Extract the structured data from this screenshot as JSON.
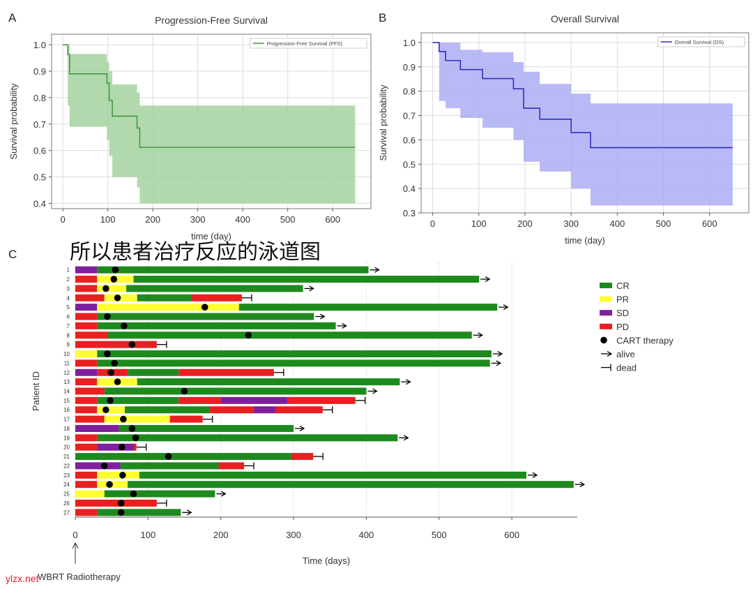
{
  "panel_labels": {
    "a": "A",
    "b": "B",
    "c": "C"
  },
  "overlay_title": "所以患者治疗反应的泳道图",
  "watermark": "ylzx.net",
  "chart_data": [
    {
      "type": "line",
      "panel": "A",
      "title": "Progression-Free Survival",
      "xlabel": "time (day)",
      "ylabel": "Survival probability",
      "legend": "Progression-Free Survival (PFS)",
      "legend_position": "top-right",
      "color": "#3f9a3f",
      "ci_color": "#9fcf9a",
      "grid": true,
      "xlim": [
        -25,
        685
      ],
      "ylim": [
        0.38,
        1.04
      ],
      "xticks": [
        0,
        100,
        200,
        300,
        400,
        500,
        600
      ],
      "yticks": [
        0.4,
        0.5,
        0.6,
        0.7,
        0.8,
        0.9,
        1.0
      ],
      "step_x": [
        0,
        11,
        15,
        98,
        103,
        110,
        165,
        171,
        650
      ],
      "step_y": [
        1.0,
        0.963,
        0.89,
        0.855,
        0.79,
        0.73,
        0.685,
        0.612,
        0.612
      ],
      "ci_lower": [
        1.0,
        0.77,
        0.69,
        0.64,
        0.58,
        0.5,
        0.46,
        0.4,
        0.4
      ],
      "ci_upper": [
        1.0,
        1.0,
        0.965,
        0.935,
        0.9,
        0.85,
        0.82,
        0.77,
        0.77
      ]
    },
    {
      "type": "line",
      "panel": "B",
      "title": "Overall Survival",
      "xlabel": "time (day)",
      "ylabel": "Survival probability",
      "legend": "Overall Survival (OS)",
      "legend_position": "top-right",
      "color": "#3030c0",
      "ci_color": "#a8a8f4",
      "grid": true,
      "xlim": [
        -25,
        685
      ],
      "ylim": [
        0.3,
        1.04
      ],
      "xticks": [
        0,
        100,
        200,
        300,
        400,
        500,
        600
      ],
      "yticks": [
        0.3,
        0.4,
        0.5,
        0.6,
        0.7,
        0.8,
        0.9,
        1.0
      ],
      "step_x": [
        0,
        14,
        28,
        60,
        108,
        175,
        197,
        232,
        300,
        342,
        650
      ],
      "step_y": [
        1.0,
        0.963,
        0.926,
        0.889,
        0.852,
        0.81,
        0.73,
        0.685,
        0.63,
        0.568,
        0.568
      ],
      "ci_lower": [
        1.0,
        0.76,
        0.73,
        0.69,
        0.65,
        0.6,
        0.51,
        0.47,
        0.4,
        0.33,
        0.33
      ],
      "ci_upper": [
        1.0,
        1.0,
        1.0,
        0.97,
        0.96,
        0.92,
        0.88,
        0.83,
        0.79,
        0.75,
        0.75
      ]
    },
    {
      "type": "bar",
      "panel": "C",
      "subtype": "swimmer",
      "xlabel": "Time (days)",
      "ylabel": "Patient ID",
      "xlim": [
        0,
        690
      ],
      "xticks": [
        0,
        100,
        200,
        300,
        400,
        500,
        600
      ],
      "annotation": "WBRT Radiotherapy",
      "legend_position": "right",
      "legend": [
        {
          "key": "CR",
          "label": "CR",
          "kind": "box",
          "color": "#1e8a1e"
        },
        {
          "key": "PR",
          "label": "PR",
          "kind": "box",
          "color": "#ffff33"
        },
        {
          "key": "SD",
          "label": "SD",
          "kind": "box",
          "color": "#7f1f9e"
        },
        {
          "key": "PD",
          "label": "PD",
          "kind": "box",
          "color": "#e82020"
        },
        {
          "key": "cart",
          "label": "CART therapy",
          "kind": "dot",
          "color": "#000000"
        },
        {
          "key": "alive",
          "label": "alive",
          "kind": "arrow",
          "color": "#000000"
        },
        {
          "key": "dead",
          "label": "dead",
          "kind": "tbar",
          "color": "#000000"
        }
      ],
      "patients": [
        {
          "id": "1",
          "segments": [
            [
              "SD",
              0,
              30
            ],
            [
              "CR",
              30,
              403
            ]
          ],
          "cart": 55,
          "status": "alive"
        },
        {
          "id": "2",
          "segments": [
            [
              "PD",
              0,
              30
            ],
            [
              "PR",
              30,
              80
            ],
            [
              "CR",
              80,
              555
            ]
          ],
          "cart": 53,
          "status": "alive"
        },
        {
          "id": "3",
          "segments": [
            [
              "PD",
              0,
              30
            ],
            [
              "PR",
              30,
              70
            ],
            [
              "CR",
              70,
              313
            ]
          ],
          "cart": 42,
          "status": "alive"
        },
        {
          "id": "4",
          "segments": [
            [
              "PD",
              0,
              40
            ],
            [
              "PR",
              40,
              85
            ],
            [
              "CR",
              85,
              160
            ],
            [
              "PD",
              160,
              229
            ]
          ],
          "cart": 58,
          "status": "dead"
        },
        {
          "id": "5",
          "segments": [
            [
              "SD",
              0,
              30
            ],
            [
              "PR",
              30,
              225
            ],
            [
              "CR",
              225,
              580
            ]
          ],
          "cart": 178,
          "status": "alive"
        },
        {
          "id": "6",
          "segments": [
            [
              "PD",
              0,
              30
            ],
            [
              "CR",
              30,
              328
            ]
          ],
          "cart": 44,
          "status": "alive"
        },
        {
          "id": "7",
          "segments": [
            [
              "PD",
              0,
              30
            ],
            [
              "CR",
              30,
              358
            ]
          ],
          "cart": 67,
          "status": "alive"
        },
        {
          "id": "8",
          "segments": [
            [
              "PD",
              0,
              45
            ],
            [
              "CR",
              45,
              545
            ]
          ],
          "cart": 238,
          "status": "alive"
        },
        {
          "id": "9",
          "segments": [
            [
              "PD",
              0,
              112
            ]
          ],
          "cart": 78,
          "status": "dead"
        },
        {
          "id": "10",
          "segments": [
            [
              "PR",
              0,
              30
            ],
            [
              "CR",
              30,
              572
            ]
          ],
          "cart": 44,
          "status": "alive"
        },
        {
          "id": "11",
          "segments": [
            [
              "PD",
              0,
              30
            ],
            [
              "CR",
              30,
              570
            ]
          ],
          "cart": 54,
          "status": "alive"
        },
        {
          "id": "12",
          "segments": [
            [
              "SD",
              0,
              30
            ],
            [
              "PD",
              30,
              72
            ],
            [
              "CR",
              72,
              142
            ],
            [
              "PD",
              142,
              273
            ]
          ],
          "cart": 49,
          "status": "dead"
        },
        {
          "id": "13",
          "segments": [
            [
              "PD",
              0,
              30
            ],
            [
              "PR",
              30,
              85
            ],
            [
              "CR",
              85,
              446
            ]
          ],
          "cart": 58,
          "status": "alive"
        },
        {
          "id": "14",
          "segments": [
            [
              "PD",
              0,
              40
            ],
            [
              "CR",
              40,
              400
            ]
          ],
          "cart": 150,
          "status": "alive"
        },
        {
          "id": "15",
          "segments": [
            [
              "PD",
              0,
              30
            ],
            [
              "CR",
              30,
              142
            ],
            [
              "PD",
              142,
              200
            ],
            [
              "SD",
              200,
              292
            ],
            [
              "PD",
              292,
              385
            ]
          ],
          "cart": 48,
          "status": "dead"
        },
        {
          "id": "16",
          "segments": [
            [
              "PD",
              0,
              30
            ],
            [
              "PR",
              30,
              68
            ],
            [
              "CR",
              68,
              185
            ],
            [
              "PD",
              185,
              245
            ],
            [
              "SD",
              245,
              275
            ],
            [
              "PD",
              275,
              340
            ]
          ],
          "cart": 42,
          "status": "dead"
        },
        {
          "id": "17",
          "segments": [
            [
              "PD",
              0,
              40
            ],
            [
              "PR",
              40,
              130
            ],
            [
              "PD",
              130,
              175
            ]
          ],
          "cart": 66,
          "status": "dead"
        },
        {
          "id": "18",
          "segments": [
            [
              "SD",
              0,
              60
            ],
            [
              "CR",
              60,
              300
            ]
          ],
          "cart": 78,
          "status": "alive"
        },
        {
          "id": "19",
          "segments": [
            [
              "PD",
              0,
              30
            ],
            [
              "CR",
              30,
              443
            ]
          ],
          "cart": 83,
          "status": "alive"
        },
        {
          "id": "20",
          "segments": [
            [
              "PD",
              0,
              30
            ],
            [
              "SD",
              30,
              80
            ],
            [
              "PD",
              80,
              84
            ]
          ],
          "cart": 64,
          "status": "dead"
        },
        {
          "id": "21",
          "segments": [
            [
              "CR",
              0,
              297
            ],
            [
              "PD",
              297,
              327
            ]
          ],
          "cart": 128,
          "status": "dead"
        },
        {
          "id": "22",
          "segments": [
            [
              "SD",
              0,
              62
            ],
            [
              "CR",
              62,
              197
            ],
            [
              "PD",
              197,
              232
            ]
          ],
          "cart": 40,
          "status": "dead"
        },
        {
          "id": "23",
          "segments": [
            [
              "PD",
              0,
              30
            ],
            [
              "PR",
              30,
              88
            ],
            [
              "CR",
              88,
              620
            ]
          ],
          "cart": 65,
          "status": "alive"
        },
        {
          "id": "24",
          "segments": [
            [
              "PD",
              0,
              30
            ],
            [
              "PR",
              30,
              72
            ],
            [
              "CR",
              72,
              685
            ]
          ],
          "cart": 47,
          "status": "alive"
        },
        {
          "id": "25",
          "segments": [
            [
              "PR",
              0,
              40
            ],
            [
              "CR",
              40,
              192
            ]
          ],
          "cart": 80,
          "status": "alive"
        },
        {
          "id": "26",
          "segments": [
            [
              "PD",
              0,
              112
            ]
          ],
          "cart": 63,
          "status": "dead"
        },
        {
          "id": "27",
          "segments": [
            [
              "PD",
              0,
              30
            ],
            [
              "CR",
              30,
              145
            ]
          ],
          "cart": 63,
          "status": "alive"
        }
      ]
    }
  ]
}
